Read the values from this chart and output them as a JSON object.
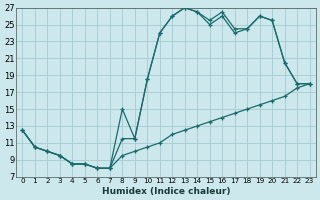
{
  "xlabel": "Humidex (Indice chaleur)",
  "bg_color": "#cce8ec",
  "grid_color": "#aacdd4",
  "line_color": "#1a6b6b",
  "xlim": [
    -0.5,
    23.5
  ],
  "ylim": [
    7,
    27
  ],
  "yticks": [
    7,
    9,
    11,
    13,
    15,
    17,
    19,
    21,
    23,
    25,
    27
  ],
  "xticks": [
    0,
    1,
    2,
    3,
    4,
    5,
    6,
    7,
    8,
    9,
    10,
    11,
    12,
    13,
    14,
    15,
    16,
    17,
    18,
    19,
    20,
    21,
    22,
    23
  ],
  "line1_x": [
    0,
    1,
    2,
    3,
    4,
    5,
    6,
    7,
    8,
    9,
    10,
    11,
    12,
    13,
    14,
    15,
    16,
    17,
    18,
    19,
    20,
    21,
    22,
    23
  ],
  "line1_y": [
    12.5,
    10.5,
    10.0,
    9.5,
    8.5,
    8.5,
    8.0,
    8.0,
    9.5,
    10.0,
    10.5,
    11.0,
    12.0,
    12.5,
    13.0,
    13.5,
    14.0,
    14.5,
    15.0,
    15.5,
    16.0,
    16.5,
    17.5,
    18.0
  ],
  "line2_x": [
    0,
    1,
    2,
    3,
    4,
    5,
    6,
    7,
    8,
    9,
    10,
    11,
    12,
    13,
    14,
    15,
    16,
    17,
    18,
    19,
    20,
    21,
    22,
    23
  ],
  "line2_y": [
    12.5,
    10.5,
    10.0,
    9.5,
    8.5,
    8.5,
    8.0,
    8.0,
    11.5,
    11.5,
    18.5,
    24.0,
    26.0,
    27.0,
    26.5,
    25.0,
    26.0,
    24.0,
    24.5,
    26.0,
    25.5,
    20.5,
    18.0,
    18.0
  ],
  "line3_x": [
    0,
    1,
    2,
    3,
    4,
    5,
    6,
    7,
    8,
    9,
    10,
    11,
    12,
    13,
    14,
    15,
    16,
    17,
    18,
    19,
    20,
    21,
    22,
    23
  ],
  "line3_y": [
    12.5,
    10.5,
    10.0,
    9.5,
    8.5,
    8.5,
    8.0,
    8.0,
    15.0,
    11.5,
    18.5,
    24.0,
    26.0,
    27.0,
    26.5,
    25.5,
    26.5,
    24.5,
    24.5,
    26.0,
    25.5,
    20.5,
    18.0,
    18.0
  ]
}
